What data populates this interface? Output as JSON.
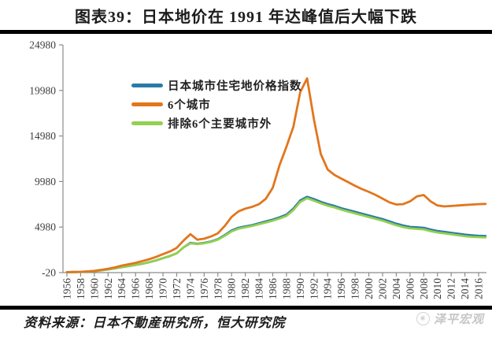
{
  "header": {
    "title": "图表39：日本地价在 1991 年达峰值后大幅下跌"
  },
  "chart_data": {
    "type": "line",
    "title": "日本地价在 1991 年达峰值后大幅下跌",
    "grid": false,
    "legend_position": "top-inside-left",
    "ylim": [
      -20,
      24980
    ],
    "y_ticks": [
      -20,
      4980,
      9980,
      14980,
      19980,
      24980
    ],
    "y_tick_labels": [
      "-20",
      "4980",
      "9980",
      "14980",
      "19980",
      "24980"
    ],
    "x_tick_labels": [
      "1956",
      "1958",
      "1960",
      "1962",
      "1964",
      "1966",
      "1968",
      "1970",
      "1972",
      "1974",
      "1976",
      "1978",
      "1980",
      "1982",
      "1984",
      "1986",
      "1988",
      "1990",
      "1992",
      "1994",
      "1996",
      "1998",
      "2000",
      "2002",
      "2004",
      "2006",
      "2008",
      "2010",
      "2012",
      "2014",
      "2016"
    ],
    "x": [
      1956,
      1957,
      1958,
      1959,
      1960,
      1961,
      1962,
      1963,
      1964,
      1965,
      1966,
      1967,
      1968,
      1969,
      1970,
      1971,
      1972,
      1973,
      1974,
      1975,
      1976,
      1977,
      1978,
      1979,
      1980,
      1981,
      1982,
      1983,
      1984,
      1985,
      1986,
      1987,
      1988,
      1989,
      1990,
      1991,
      1992,
      1993,
      1994,
      1995,
      1996,
      1997,
      1998,
      1999,
      2000,
      2001,
      2002,
      2003,
      2004,
      2005,
      2006,
      2007,
      2008,
      2009,
      2010,
      2011,
      2012,
      2013,
      2014,
      2015,
      2016,
      2017
    ],
    "series": [
      {
        "name": "日本城市住宅地价格指数",
        "color": "#2b7ba8",
        "values": [
          25,
          40,
          60,
          90,
          140,
          230,
          330,
          450,
          580,
          700,
          820,
          960,
          1120,
          1320,
          1560,
          1800,
          2100,
          2750,
          3250,
          3150,
          3250,
          3400,
          3650,
          4100,
          4600,
          4900,
          5050,
          5200,
          5400,
          5600,
          5800,
          6050,
          6350,
          7000,
          7900,
          8300,
          8050,
          7750,
          7500,
          7300,
          7050,
          6850,
          6650,
          6450,
          6250,
          6050,
          5850,
          5600,
          5350,
          5150,
          5000,
          4950,
          4900,
          4700,
          4550,
          4450,
          4350,
          4250,
          4150,
          4080,
          4020,
          4000
        ]
      },
      {
        "name": "6个城市",
        "color": "#e2761c",
        "values": [
          30,
          45,
          70,
          110,
          170,
          280,
          400,
          550,
          750,
          900,
          1050,
          1250,
          1450,
          1700,
          2000,
          2300,
          2700,
          3500,
          4200,
          3600,
          3700,
          3950,
          4300,
          5100,
          6100,
          6700,
          7000,
          7200,
          7500,
          8100,
          9300,
          11800,
          13800,
          16000,
          19800,
          21300,
          16800,
          13000,
          11300,
          10700,
          10300,
          9900,
          9500,
          9150,
          8850,
          8500,
          8100,
          7700,
          7450,
          7500,
          7800,
          8350,
          8500,
          7800,
          7350,
          7250,
          7300,
          7350,
          7400,
          7450,
          7500,
          7520
        ]
      },
      {
        "name": "排除6个主要城市外",
        "color": "#92d050",
        "values": [
          25,
          40,
          62,
          92,
          145,
          235,
          335,
          455,
          585,
          705,
          825,
          965,
          1125,
          1330,
          1570,
          1810,
          2110,
          2750,
          3200,
          3100,
          3200,
          3350,
          3600,
          4020,
          4500,
          4800,
          4950,
          5100,
          5300,
          5480,
          5680,
          5920,
          6200,
          6850,
          7750,
          8150,
          7880,
          7580,
          7330,
          7130,
          6880,
          6680,
          6480,
          6280,
          6080,
          5880,
          5680,
          5430,
          5180,
          4980,
          4830,
          4780,
          4730,
          4530,
          4380,
          4280,
          4180,
          4080,
          3980,
          3910,
          3870,
          3850
        ]
      }
    ],
    "axis_color": "#8c8c8c",
    "tick_label_color": "#3d3d3d"
  },
  "footer": {
    "source": "资料来源：日本不動産研究所，恒大研究院",
    "watermark": "泽平宏观",
    "watermark_icon": "✳"
  }
}
